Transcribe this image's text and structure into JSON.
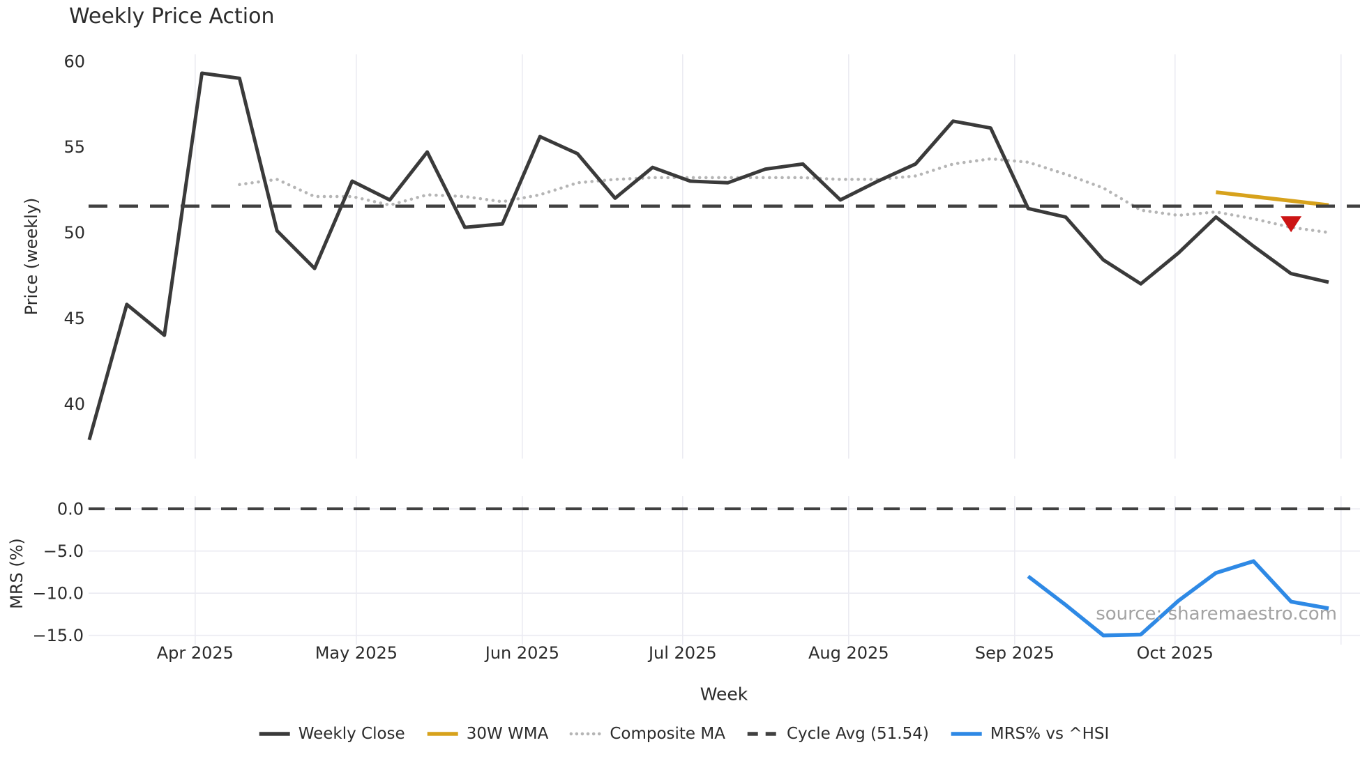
{
  "title": "Weekly Price Action",
  "source_text": "source: sharemaestro.com",
  "colors": {
    "close_line": "#3a3a3a",
    "wma_line": "#d7a21c",
    "composite_line": "#b5b5b5",
    "cycle_avg_line": "#404040",
    "mrs_line": "#2e89e5",
    "signal_marker": "#cc1414",
    "gridline": "#ebebf2",
    "text": "#2b2b2b",
    "source_text": "#a3a3a3"
  },
  "legend": [
    {
      "label": "Weekly Close",
      "color": "#3a3a3a",
      "style": "solid"
    },
    {
      "label": "30W WMA",
      "color": "#d7a21c",
      "style": "solid"
    },
    {
      "label": "Composite MA",
      "color": "#b5b5b5",
      "style": "dotted"
    },
    {
      "label": "Cycle Avg (51.54)",
      "color": "#404040",
      "style": "dashed"
    },
    {
      "label": "MRS% vs ^HSI",
      "color": "#2e89e5",
      "style": "solid"
    }
  ],
  "chart_data": {
    "type": "line",
    "title": "Weekly Price Action",
    "xlabel": "Week",
    "x_unit": "weekly points, mid-Mar 2025 to early-Nov 2025",
    "n_weeks": 34,
    "month_ticks": [
      {
        "label": "Apr 2025",
        "week": 2.82
      },
      {
        "label": "May 2025",
        "week": 7.11
      },
      {
        "label": "Jun 2025",
        "week": 11.53
      },
      {
        "label": "Jul 2025",
        "week": 15.8
      },
      {
        "label": "Aug 2025",
        "week": 20.22
      },
      {
        "label": "Sep 2025",
        "week": 24.64
      },
      {
        "label": "Oct 2025",
        "week": 28.91
      },
      {
        "label": "",
        "week": 33.33
      }
    ],
    "panels": [
      {
        "name": "price",
        "ylabel": "Price (weekly)",
        "ylim": [
          36.8,
          60.4
        ],
        "hgrid": false,
        "yticks": [
          {
            "value": 60,
            "label": "60"
          },
          {
            "value": 55,
            "label": "55"
          },
          {
            "value": 50,
            "label": "50"
          },
          {
            "value": 45,
            "label": "45"
          },
          {
            "value": 40,
            "label": "40"
          }
        ],
        "series": [
          {
            "name": "Composite MA",
            "color": "#b5b5b5",
            "style": "dotted",
            "width": 4.5,
            "start_week": 4,
            "values": [
              52.8,
              53.1,
              52.1,
              52.1,
              51.6,
              52.2,
              52.1,
              51.8,
              52.2,
              52.9,
              53.1,
              53.2,
              53.2,
              53.2,
              53.2,
              53.2,
              53.1,
              53.1,
              53.3,
              54.0,
              54.3,
              54.1,
              53.4,
              52.6,
              51.3,
              51.0,
              51.2,
              50.8,
              50.3,
              50.0
            ]
          },
          {
            "name": "Weekly Close",
            "color": "#3a3a3a",
            "style": "solid",
            "width": 5,
            "start_week": 0,
            "values": [
              37.9,
              45.8,
              44.0,
              59.3,
              59.0,
              50.1,
              47.9,
              53.0,
              51.9,
              54.7,
              50.3,
              50.5,
              55.6,
              54.6,
              52.0,
              53.8,
              53.0,
              52.9,
              53.7,
              54.0,
              51.9,
              53.0,
              54.0,
              56.5,
              56.1,
              51.4,
              50.9,
              48.4,
              47.0,
              48.8,
              50.9,
              49.2,
              47.6,
              47.1
            ]
          },
          {
            "name": "30W WMA",
            "color": "#d7a21c",
            "style": "solid",
            "width": 5.5,
            "start_week": 30,
            "values": [
              52.35,
              52.1,
              51.85,
              51.6
            ]
          },
          {
            "name": "Cycle Avg (51.54)",
            "color": "#404040",
            "style": "dashed",
            "width": 4.5,
            "constant": 51.54
          }
        ],
        "markers": [
          {
            "shape": "triangle-down",
            "color": "#cc1414",
            "week": 32,
            "value": 50.5
          }
        ]
      },
      {
        "name": "mrs",
        "ylabel": "MRS (%)",
        "ylim": [
          -16.1,
          1.5
        ],
        "hgrid": true,
        "yticks": [
          {
            "value": 0,
            "label": "0.0"
          },
          {
            "value": -5,
            "label": "−5.0"
          },
          {
            "value": -10,
            "label": "−10.0"
          },
          {
            "value": -15,
            "label": "−15.0"
          }
        ],
        "series": [
          {
            "name": "Zero Line",
            "color": "#404040",
            "style": "dashed",
            "width": 4,
            "constant": 0
          },
          {
            "name": "MRS% vs ^HSI",
            "color": "#2e89e5",
            "style": "solid",
            "width": 5.5,
            "start_week": 25,
            "values": [
              -8.0,
              -11.4,
              -15.0,
              -14.9,
              -10.9,
              -7.6,
              -6.2,
              -11.0,
              -11.8
            ]
          }
        ]
      }
    ]
  }
}
